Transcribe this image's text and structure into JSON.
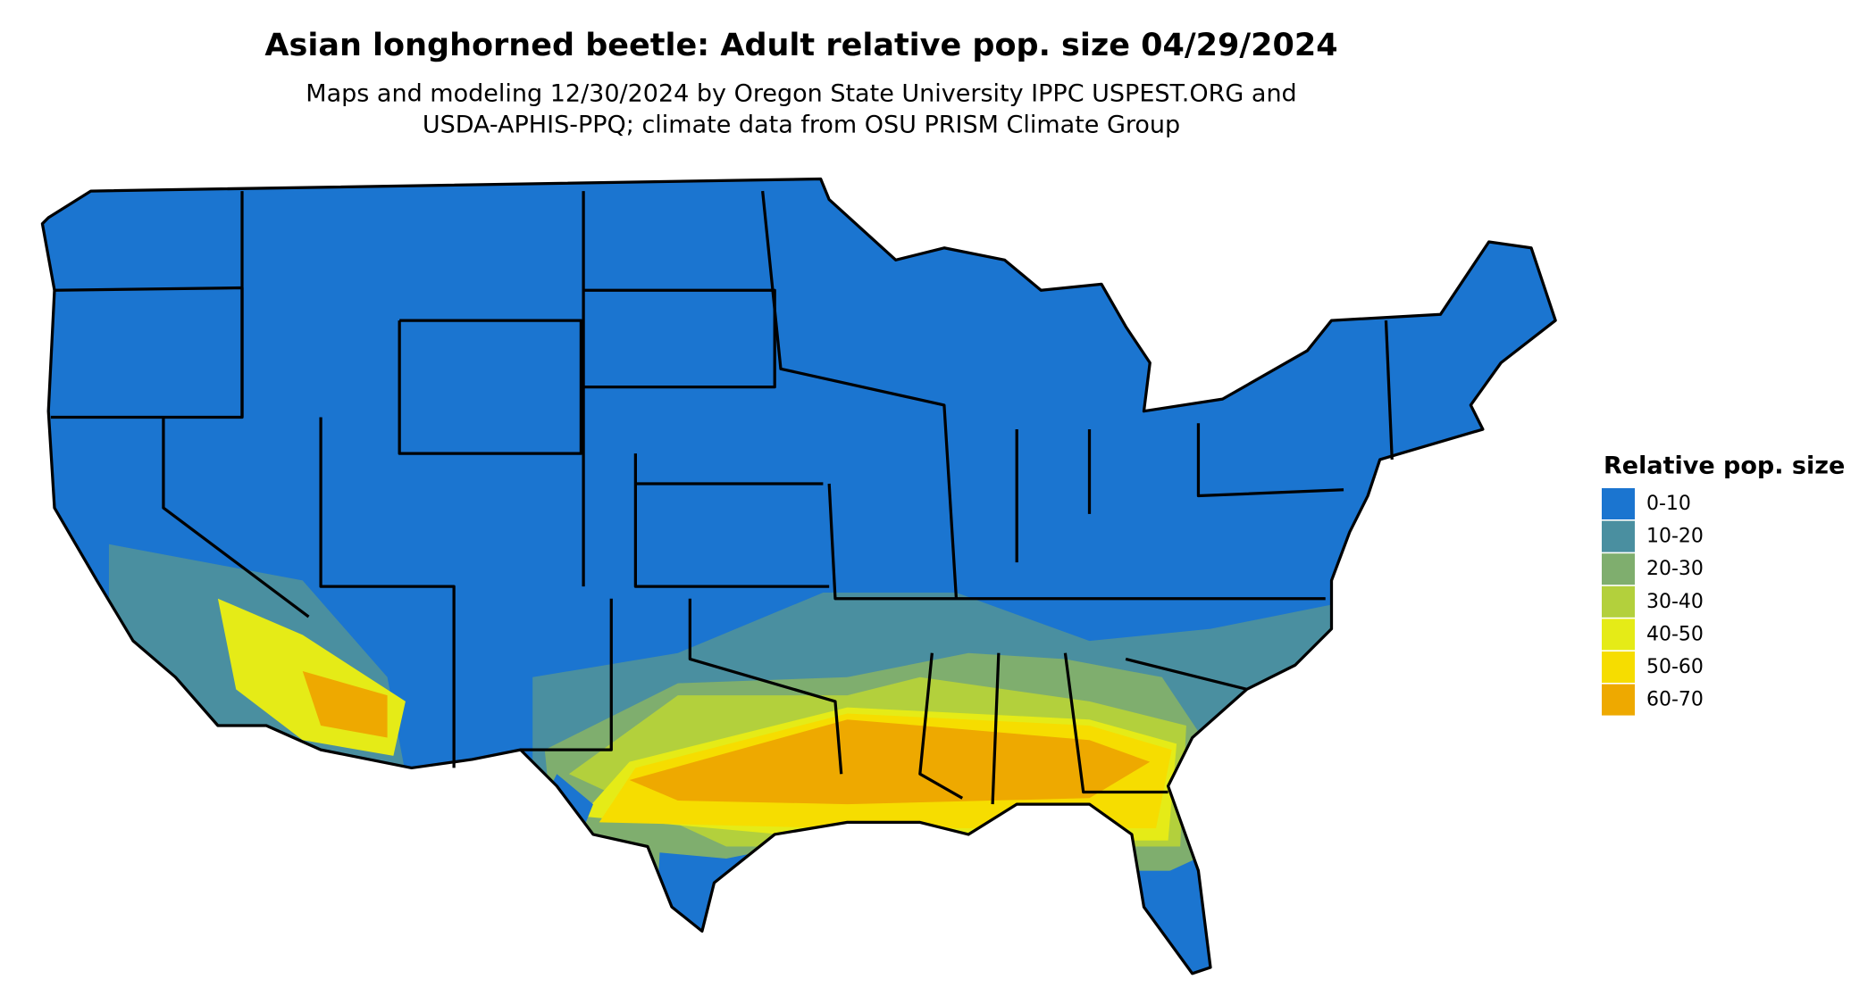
{
  "title": "Asian longhorned beetle: Adult relative pop. size 04/29/2024",
  "subtitle": [
    "Maps and modeling 12/30/2024 by Oregon State University IPPC USPEST.ORG and",
    "USDA-APHIS-PPQ; climate data from OSU PRISM Climate Group"
  ],
  "legend": {
    "title": "Relative pop. size",
    "items": [
      {
        "label": "0-10",
        "color": "#1b75d0"
      },
      {
        "label": "10-20",
        "color": "#4a8fa0"
      },
      {
        "label": "20-30",
        "color": "#7fae6e"
      },
      {
        "label": "30-40",
        "color": "#b3d03c"
      },
      {
        "label": "40-50",
        "color": "#e5eb17"
      },
      {
        "label": "50-60",
        "color": "#f6dd00"
      },
      {
        "label": "60-70",
        "color": "#eea900"
      }
    ]
  }
}
